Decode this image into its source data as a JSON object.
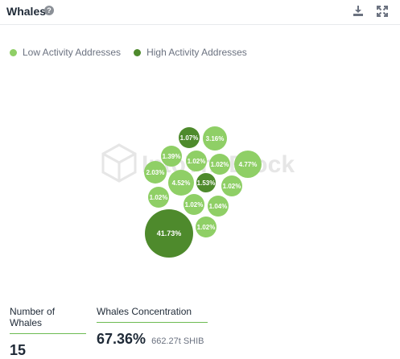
{
  "widget": {
    "title": "Whales",
    "help_glyph": "?"
  },
  "toolbar": {
    "download_icon": "download-icon",
    "expand_icon": "expand-icon"
  },
  "legend": [
    {
      "label": "Low Activity Addresses",
      "color": "#8fcf66"
    },
    {
      "label": "High Activity Addresses",
      "color": "#4e8a2c"
    }
  ],
  "watermark": {
    "text": "IntoTheBlock"
  },
  "chart_data": {
    "type": "bubble",
    "series": [
      {
        "name": "Low Activity Addresses",
        "color": "#8fcf66"
      },
      {
        "name": "High Activity Addresses",
        "color": "#4e8a2c"
      }
    ],
    "bubbles": [
      {
        "label": "1.07%",
        "value": 1.07,
        "series": "High Activity Addresses"
      },
      {
        "label": "3.16%",
        "value": 3.16,
        "series": "Low Activity Addresses"
      },
      {
        "label": "1.39%",
        "value": 1.39,
        "series": "Low Activity Addresses"
      },
      {
        "label": "1.02%",
        "value": 1.02,
        "series": "Low Activity Addresses"
      },
      {
        "label": "1.02%",
        "value": 1.02,
        "series": "Low Activity Addresses"
      },
      {
        "label": "4.77%",
        "value": 4.77,
        "series": "Low Activity Addresses"
      },
      {
        "label": "2.03%",
        "value": 2.03,
        "series": "Low Activity Addresses"
      },
      {
        "label": "4.52%",
        "value": 4.52,
        "series": "Low Activity Addresses"
      },
      {
        "label": "1.53%",
        "value": 1.53,
        "series": "High Activity Addresses"
      },
      {
        "label": "1.02%",
        "value": 1.02,
        "series": "Low Activity Addresses"
      },
      {
        "label": "1.02%",
        "value": 1.02,
        "series": "Low Activity Addresses"
      },
      {
        "label": "1.02%",
        "value": 1.02,
        "series": "Low Activity Addresses"
      },
      {
        "label": "1.04%",
        "value": 1.04,
        "series": "Low Activity Addresses"
      },
      {
        "label": "41.73%",
        "value": 41.73,
        "series": "High Activity Addresses"
      },
      {
        "label": "1.02%",
        "value": 1.02,
        "series": "Low Activity Addresses"
      }
    ]
  },
  "stats": {
    "whales_count": {
      "label": "Number of Whales",
      "value": "15"
    },
    "concentration": {
      "label": "Whales Concentration",
      "value": "67.36%",
      "sub": "662.27t SHIB"
    }
  }
}
